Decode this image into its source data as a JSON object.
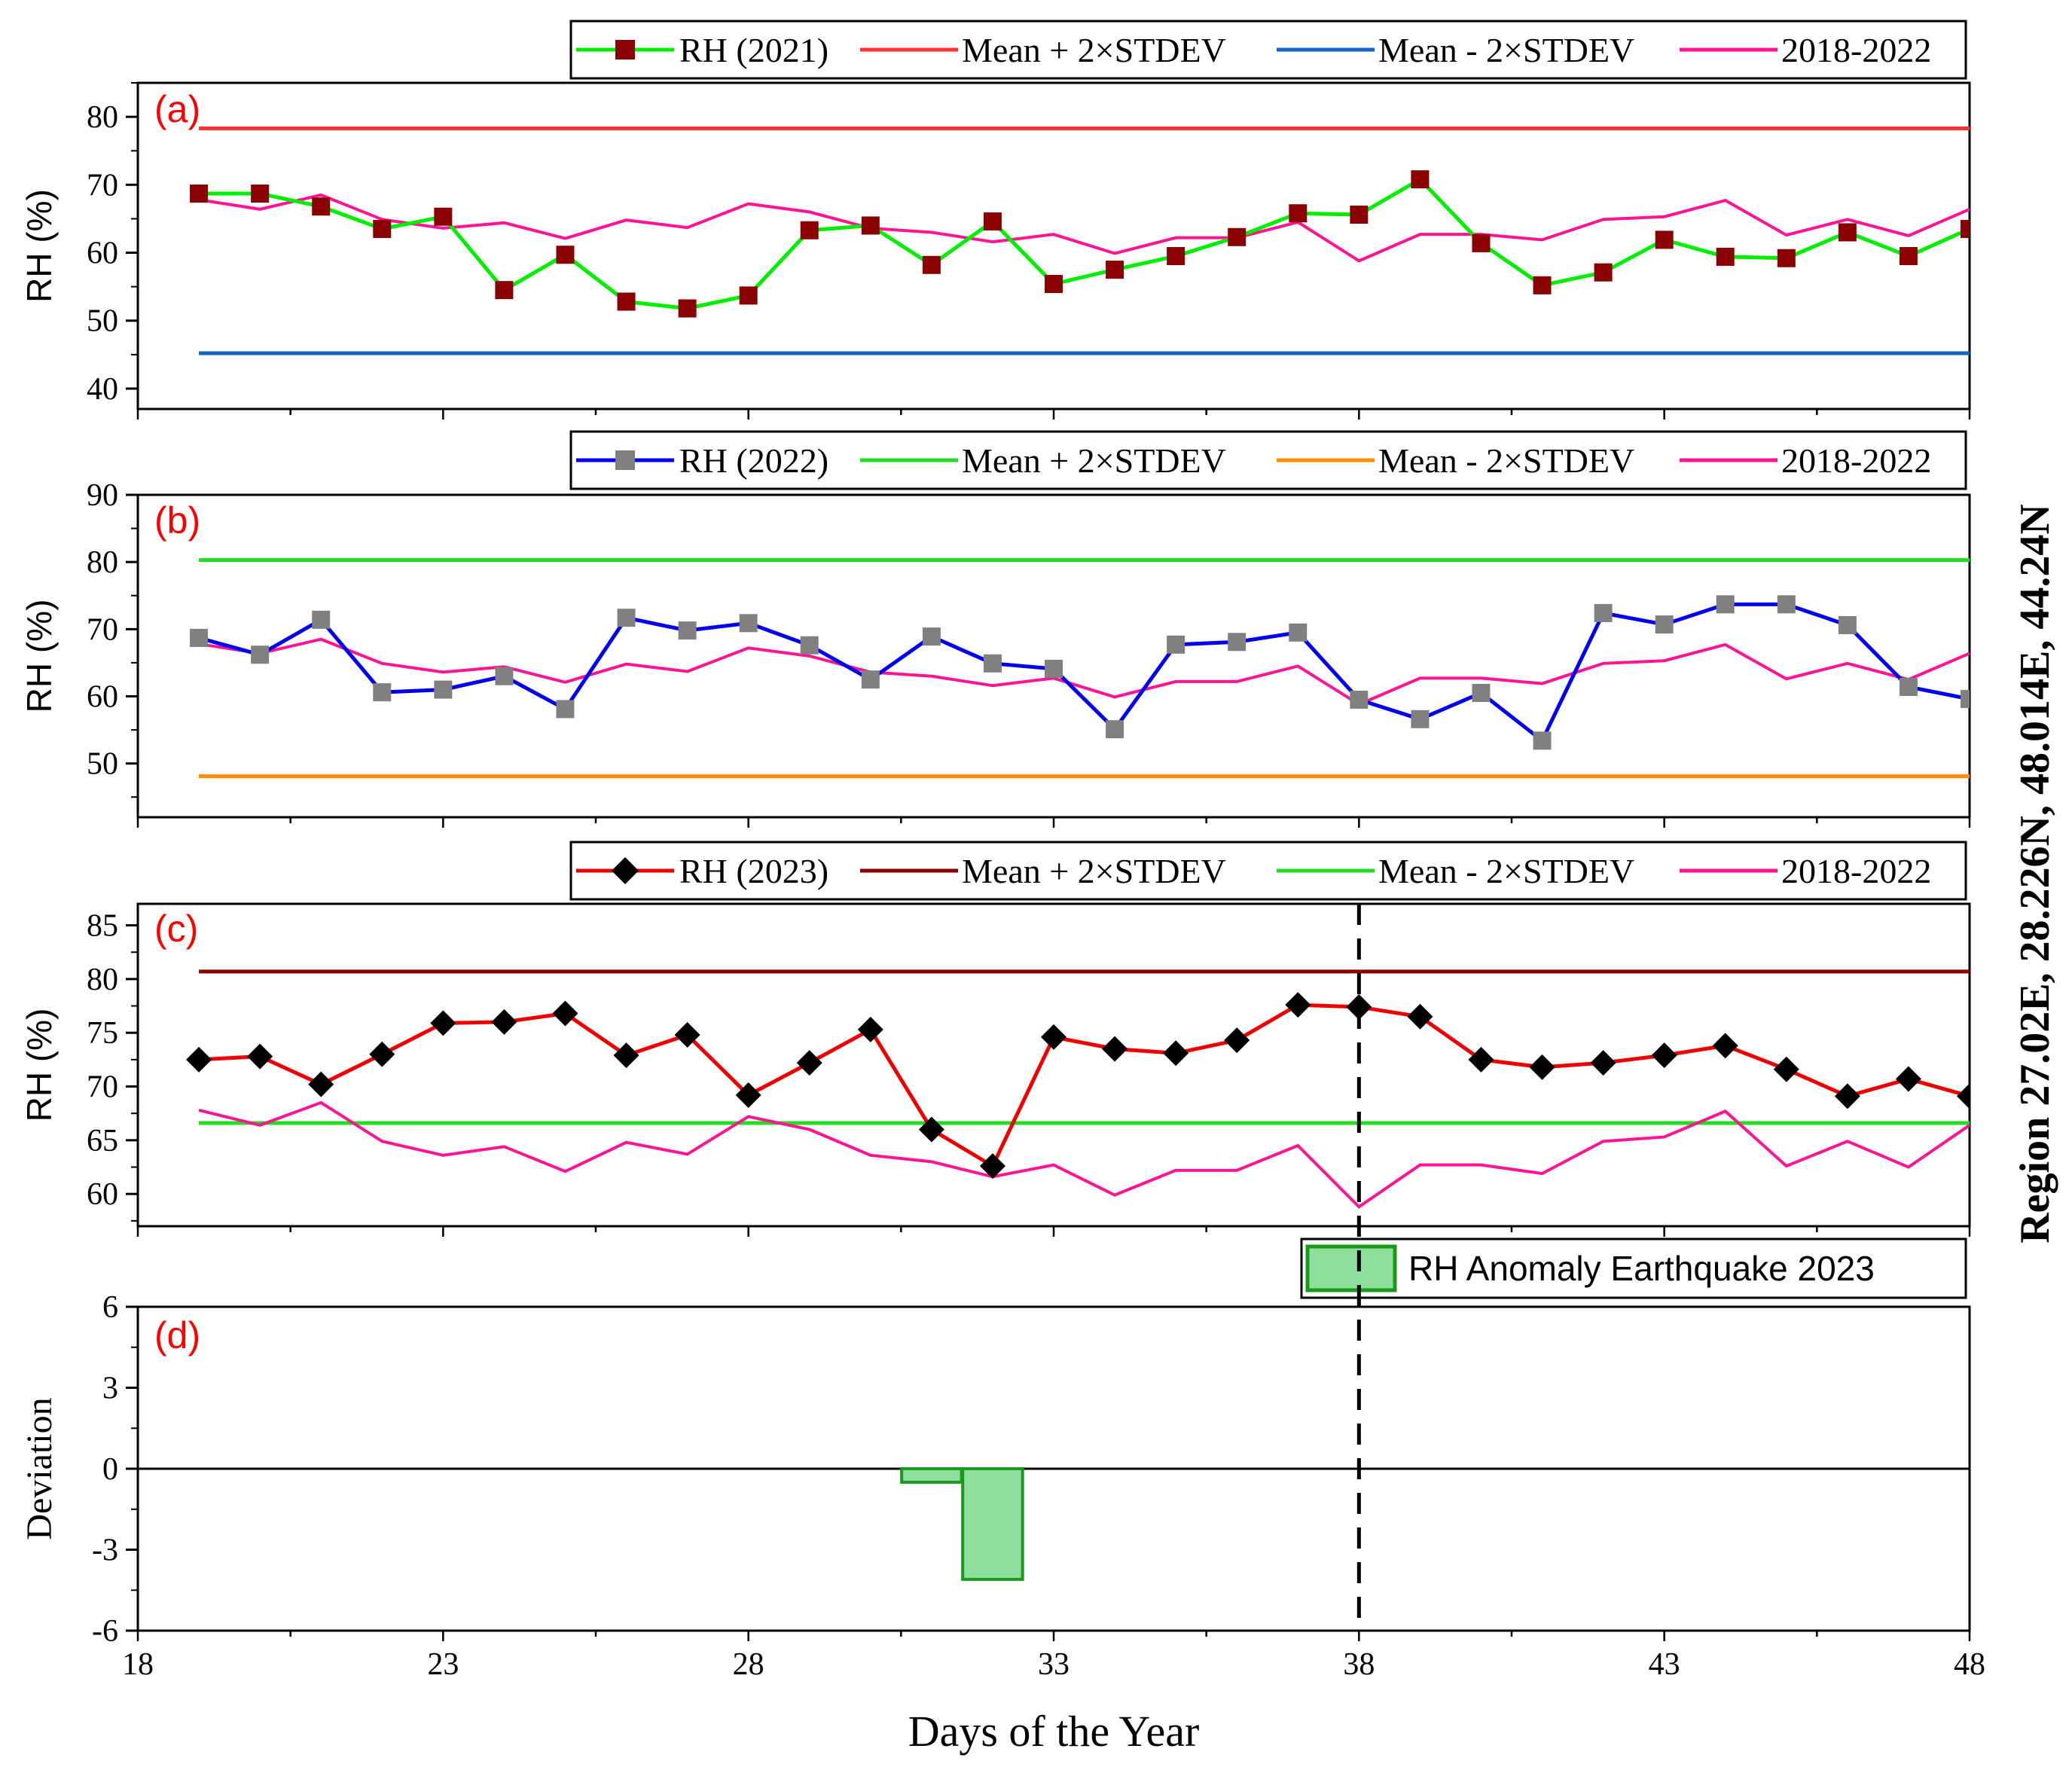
{
  "chart_data": [
    {
      "type": "line",
      "panel": "(a)",
      "ylabel": "RH (%)",
      "ylim": [
        37,
        85
      ],
      "yticks": [
        40,
        50,
        60,
        70,
        80
      ],
      "xlim": [
        18,
        48
      ],
      "x": [
        19,
        20,
        21,
        22,
        23,
        24,
        25,
        26,
        27,
        28,
        29,
        30,
        31,
        32,
        33,
        34,
        35,
        36,
        37,
        38,
        39,
        40,
        41,
        42,
        43,
        44,
        45,
        46,
        47,
        48
      ],
      "series": [
        {
          "name": "RH (2021)",
          "color": "#00ee00",
          "marker": "square",
          "marker_color": "#8b0000",
          "values": [
            68.7,
            68.7,
            66.8,
            63.5,
            65.3,
            54.5,
            59.7,
            52.8,
            51.8,
            53.7,
            63.3,
            64.0,
            58.2,
            64.6,
            55.4,
            57.5,
            59.5,
            62.3,
            65.8,
            65.6,
            70.8,
            61.4,
            55.2,
            57.1,
            61.9,
            59.4,
            59.2,
            63.0,
            59.5,
            63.5
          ]
        },
        {
          "name": "Mean + 2×STDEV",
          "color": "#ff3333",
          "constant": 78.3
        },
        {
          "name": "Mean - 2×STDEV",
          "color": "#1565c0",
          "constant": 45.2
        },
        {
          "name": "2018-2022",
          "color": "#ff1493",
          "values": [
            67.8,
            66.4,
            68.5,
            64.9,
            63.6,
            64.4,
            62.1,
            64.8,
            63.7,
            67.2,
            66.0,
            63.6,
            63.0,
            61.6,
            62.7,
            59.9,
            62.2,
            62.2,
            64.5,
            58.8,
            62.7,
            62.7,
            61.9,
            64.9,
            65.3,
            67.7,
            62.6,
            64.9,
            62.5,
            66.4
          ]
        }
      ]
    },
    {
      "type": "line",
      "panel": "(b)",
      "ylabel": "RH (%)",
      "ylim": [
        42,
        90
      ],
      "yticks": [
        50,
        60,
        70,
        80,
        90
      ],
      "xlim": [
        18,
        48
      ],
      "x": [
        19,
        20,
        21,
        22,
        23,
        24,
        25,
        26,
        27,
        28,
        29,
        30,
        31,
        32,
        33,
        34,
        35,
        36,
        37,
        38,
        39,
        40,
        41,
        42,
        43,
        44,
        45,
        46,
        47,
        48
      ],
      "series": [
        {
          "name": "RH (2022)",
          "color": "#0000ee",
          "marker": "square",
          "marker_color": "#808080",
          "values": [
            68.7,
            66.2,
            71.4,
            60.6,
            61.0,
            63.0,
            58.1,
            71.7,
            69.8,
            70.9,
            67.6,
            62.5,
            68.9,
            64.9,
            64.1,
            55.1,
            67.7,
            68.1,
            69.5,
            59.5,
            56.6,
            60.5,
            53.4,
            72.4,
            70.7,
            73.7,
            73.7,
            70.6,
            61.4,
            59.6
          ]
        },
        {
          "name": "Mean + 2×STDEV",
          "color": "#22dd22",
          "constant": 80.3
        },
        {
          "name": "Mean - 2×STDEV",
          "color": "#ff8c00",
          "constant": 48.1
        },
        {
          "name": "2018-2022",
          "color": "#ff1493",
          "values": [
            67.8,
            66.4,
            68.5,
            64.9,
            63.6,
            64.4,
            62.1,
            64.8,
            63.7,
            67.2,
            66.0,
            63.6,
            63.0,
            61.6,
            62.7,
            59.9,
            62.2,
            62.2,
            64.5,
            58.8,
            62.7,
            62.7,
            61.9,
            64.9,
            65.3,
            67.7,
            62.6,
            64.9,
            62.5,
            66.4
          ]
        }
      ]
    },
    {
      "type": "line",
      "panel": "(c)",
      "ylabel": "RH (%)",
      "ylim": [
        57,
        87
      ],
      "yticks": [
        60,
        65,
        70,
        75,
        80,
        85
      ],
      "xlim": [
        18,
        48
      ],
      "event_x": 38,
      "x": [
        19,
        20,
        21,
        22,
        23,
        24,
        25,
        26,
        27,
        28,
        29,
        30,
        31,
        32,
        33,
        34,
        35,
        36,
        37,
        38,
        39,
        40,
        41,
        42,
        43,
        44,
        45,
        46,
        47,
        48
      ],
      "series": [
        {
          "name": "RH (2023)",
          "color": "#ee0000",
          "marker": "diamond",
          "marker_color": "#000000",
          "values": [
            72.5,
            72.8,
            70.2,
            73.0,
            75.9,
            76.0,
            76.8,
            72.9,
            74.8,
            69.2,
            72.2,
            75.3,
            66.0,
            62.6,
            74.6,
            73.5,
            73.1,
            74.3,
            77.6,
            77.4,
            76.5,
            72.5,
            71.8,
            72.2,
            72.9,
            73.8,
            71.6,
            69.1,
            70.7,
            69.1
          ]
        },
        {
          "name": "Mean + 2×STDEV",
          "color": "#8b0000",
          "constant": 80.7
        },
        {
          "name": "Mean - 2×STDEV",
          "color": "#22dd22",
          "constant": 66.6
        },
        {
          "name": "2018-2022",
          "color": "#ff1493",
          "values": [
            67.8,
            66.4,
            68.5,
            64.9,
            63.6,
            64.4,
            62.1,
            64.8,
            63.7,
            67.2,
            66.0,
            63.6,
            63.0,
            61.6,
            62.7,
            59.9,
            62.2,
            62.2,
            64.5,
            58.8,
            62.7,
            62.7,
            61.9,
            64.9,
            65.3,
            67.7,
            62.6,
            64.9,
            62.5,
            66.4
          ]
        }
      ]
    },
    {
      "type": "bar",
      "panel": "(d)",
      "ylabel": "Deviation",
      "xlabel": "Days of the Year",
      "ylim": [
        -6,
        6
      ],
      "yticks": [
        -6,
        -3,
        0,
        3,
        6
      ],
      "xlim": [
        18,
        48
      ],
      "xticks": [
        18,
        23,
        28,
        33,
        38,
        43,
        48
      ],
      "event_x": 38,
      "series": [
        {
          "name": "RH Anomaly Earthquake 2023",
          "color": "#8ede9e",
          "edge": "#1a9a1a",
          "x": [
            31,
            32
          ],
          "values": [
            -0.5,
            -4.1
          ]
        }
      ]
    }
  ],
  "region_label": "Region 27.02E, 28.226N, 48.014E, 44.24N"
}
